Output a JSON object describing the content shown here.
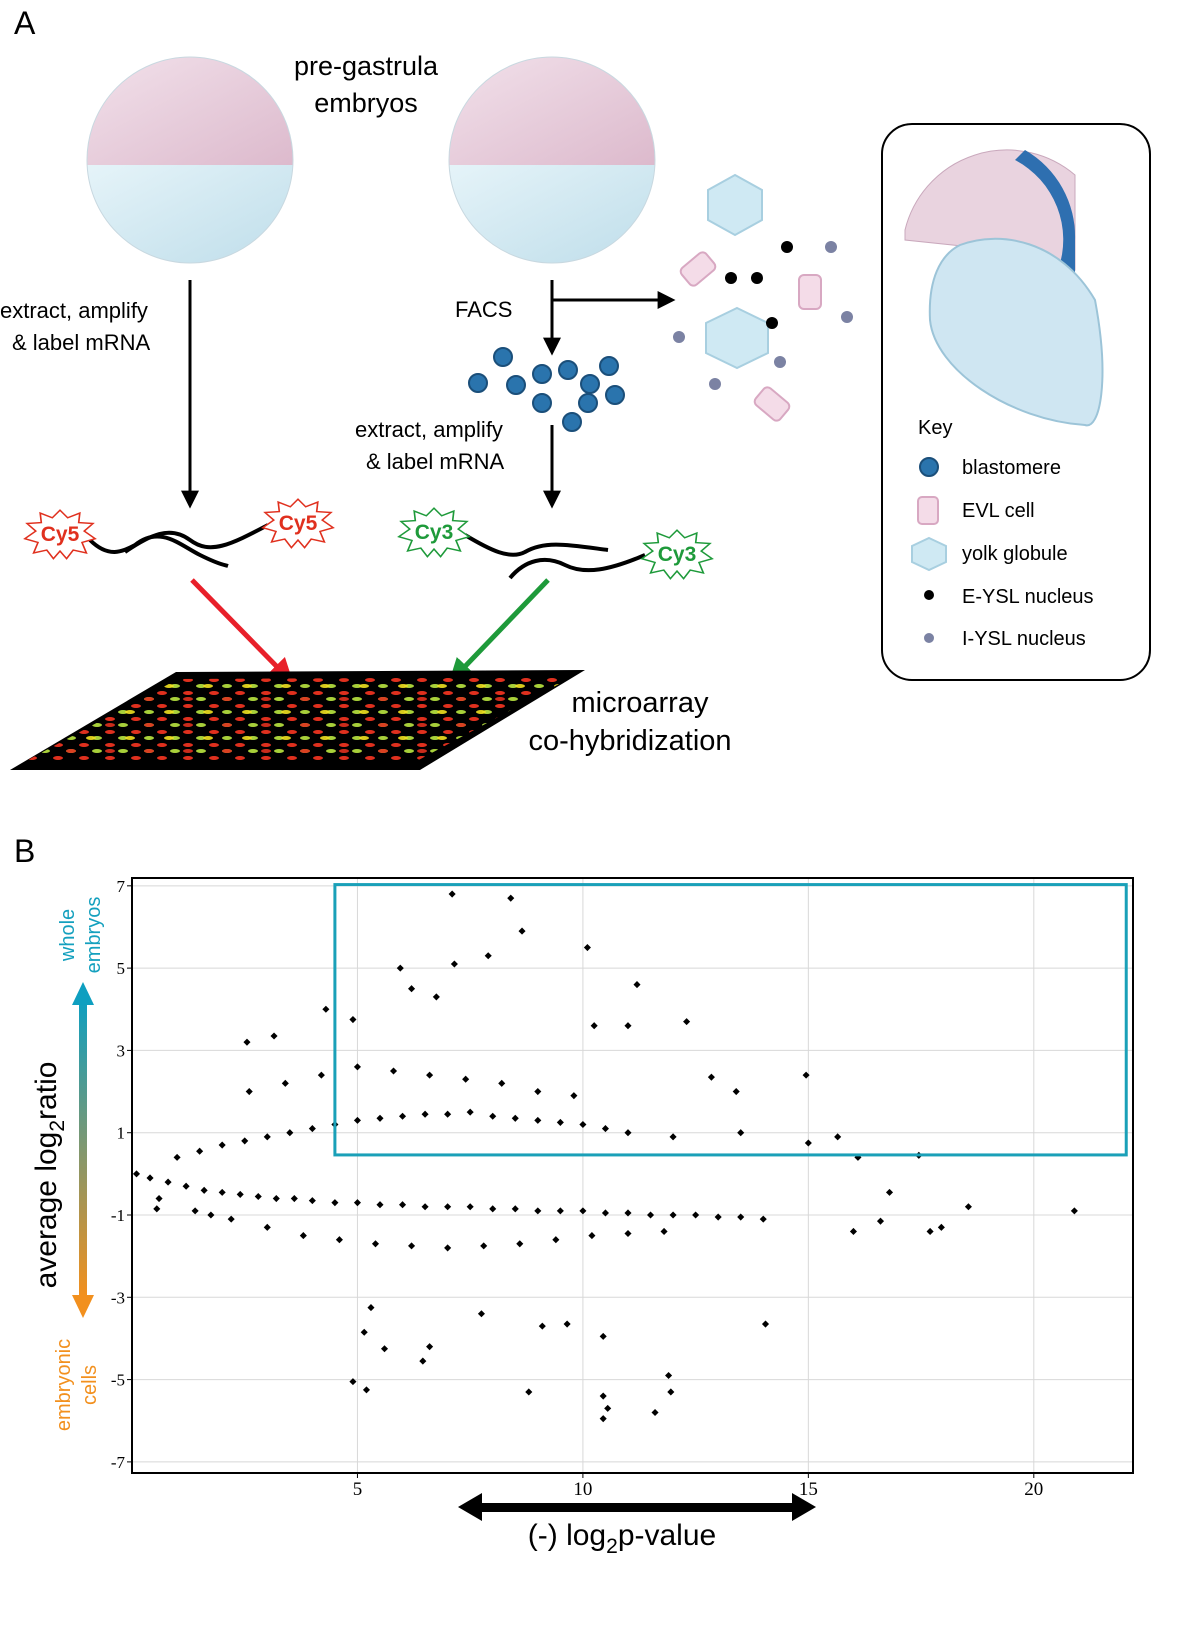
{
  "panel_a": {
    "label": "A",
    "embryo_title": [
      "pre-gastrula",
      "embryos"
    ],
    "left_step": [
      "extract, amplify",
      "& label mRNA"
    ],
    "facs": "FACS",
    "right_step": [
      "extract, amplify",
      "& label mRNA"
    ],
    "dyes": [
      "Cy5",
      "Cy5",
      "Cy3",
      "Cy3"
    ],
    "array_label": [
      "microarray",
      "co-hybridization"
    ],
    "key": {
      "title": "Key",
      "items": [
        "blastomere",
        "EVL cell",
        "yolk globule",
        "E-YSL nucleus",
        "I-YSL nucleus"
      ]
    }
  },
  "chart_data": {
    "type": "scatter",
    "panel_label": "B",
    "ylabel": [
      "average log",
      "2",
      "ratio"
    ],
    "xlabel": [
      "(-) log",
      "2",
      "p-value"
    ],
    "annotations": {
      "top": [
        "whole",
        "embryos"
      ],
      "bottom": [
        "embryonic",
        "cells"
      ]
    },
    "xlim": [
      0,
      22.2
    ],
    "ylim": [
      -7.27,
      7.19
    ],
    "xticks": [
      5,
      10,
      15,
      20
    ],
    "yticks": [
      7,
      5,
      3,
      1,
      -1,
      -3,
      -5,
      -7
    ],
    "grid": true,
    "color": "#000000",
    "region": {
      "xlim": [
        4.5,
        22.05
      ],
      "ylim": [
        0.46,
        7.03
      ],
      "color": "#1aa0b8"
    },
    "x": [
      7.1,
      8.4,
      8.65,
      10.1,
      7.15,
      5.95,
      7.9,
      11.2,
      6.2,
      6.75,
      4.3,
      4.9,
      10.25,
      11.0,
      12.3,
      3.15,
      2.55,
      12.85,
      14.95,
      13.4,
      13.5,
      15.65,
      15.0,
      16.1,
      17.45,
      16.8,
      18.55,
      16.6,
      16.0,
      17.7,
      17.95,
      20.9,
      5.15,
      5.6,
      4.9,
      5.2,
      6.45,
      6.6,
      8.8,
      10.45,
      10.55,
      10.45,
      11.6,
      11.9,
      11.95,
      14.05,
      10.45,
      9.65,
      9.1,
      7.75,
      5.3,
      0.55,
      1.75,
      0.1,
      0.4,
      0.8,
      1.2,
      1.6,
      2.0,
      2.4,
      2.8,
      3.2,
      3.6,
      4.0,
      4.5,
      5.0,
      5.5,
      6.0,
      6.5,
      7.0,
      7.5,
      8.0,
      8.5,
      9.0,
      9.5,
      10.0,
      10.5,
      11.0,
      11.5,
      12.0,
      12.5,
      13.0,
      13.5,
      14.0,
      1.0,
      1.5,
      2.0,
      2.5,
      3.0,
      3.5,
      4.0,
      4.5,
      5.0,
      5.5,
      6.0,
      6.5,
      7.0,
      7.5,
      8.0,
      8.5,
      9.0,
      9.5,
      10.0,
      10.5,
      11.0,
      12.0,
      0.6,
      1.4,
      2.2,
      3.0,
      3.8,
      4.6,
      5.4,
      6.2,
      7.0,
      7.8,
      8.6,
      9.4,
      10.2,
      11.0,
      11.8,
      2.6,
      3.4,
      4.2,
      5.0,
      5.8,
      6.6,
      7.4,
      8.2,
      9.0,
      9.8
    ],
    "y": [
      6.8,
      6.7,
      5.9,
      5.5,
      5.1,
      5.0,
      5.3,
      4.6,
      4.5,
      4.3,
      4.0,
      3.75,
      3.6,
      3.6,
      3.7,
      3.35,
      3.2,
      2.35,
      2.4,
      2.0,
      1.0,
      0.9,
      0.75,
      0.4,
      0.45,
      -0.45,
      -0.8,
      -1.15,
      -1.4,
      -1.4,
      -1.3,
      -0.9,
      -3.85,
      -4.25,
      -5.05,
      -5.25,
      -4.55,
      -4.2,
      -5.3,
      -5.4,
      -5.7,
      -5.95,
      -5.8,
      -4.9,
      -5.3,
      -3.65,
      -3.95,
      -3.65,
      -3.7,
      -3.4,
      -3.25,
      -0.85,
      -1.0,
      0.0,
      -0.1,
      -0.2,
      -0.3,
      -0.4,
      -0.45,
      -0.5,
      -0.55,
      -0.6,
      -0.6,
      -0.65,
      -0.7,
      -0.7,
      -0.75,
      -0.75,
      -0.8,
      -0.8,
      -0.8,
      -0.85,
      -0.85,
      -0.9,
      -0.9,
      -0.9,
      -0.95,
      -0.95,
      -1.0,
      -1.0,
      -1.0,
      -1.05,
      -1.05,
      -1.1,
      0.4,
      0.55,
      0.7,
      0.8,
      0.9,
      1.0,
      1.1,
      1.2,
      1.3,
      1.35,
      1.4,
      1.45,
      1.45,
      1.5,
      1.4,
      1.35,
      1.3,
      1.25,
      1.2,
      1.1,
      1.0,
      0.9,
      -0.6,
      -0.9,
      -1.1,
      -1.3,
      -1.5,
      -1.6,
      -1.7,
      -1.75,
      -1.8,
      -1.75,
      -1.7,
      -1.6,
      -1.5,
      -1.45,
      -1.4,
      2.0,
      2.2,
      2.4,
      2.6,
      2.5,
      2.4,
      2.3,
      2.2,
      2.0,
      1.9
    ]
  }
}
